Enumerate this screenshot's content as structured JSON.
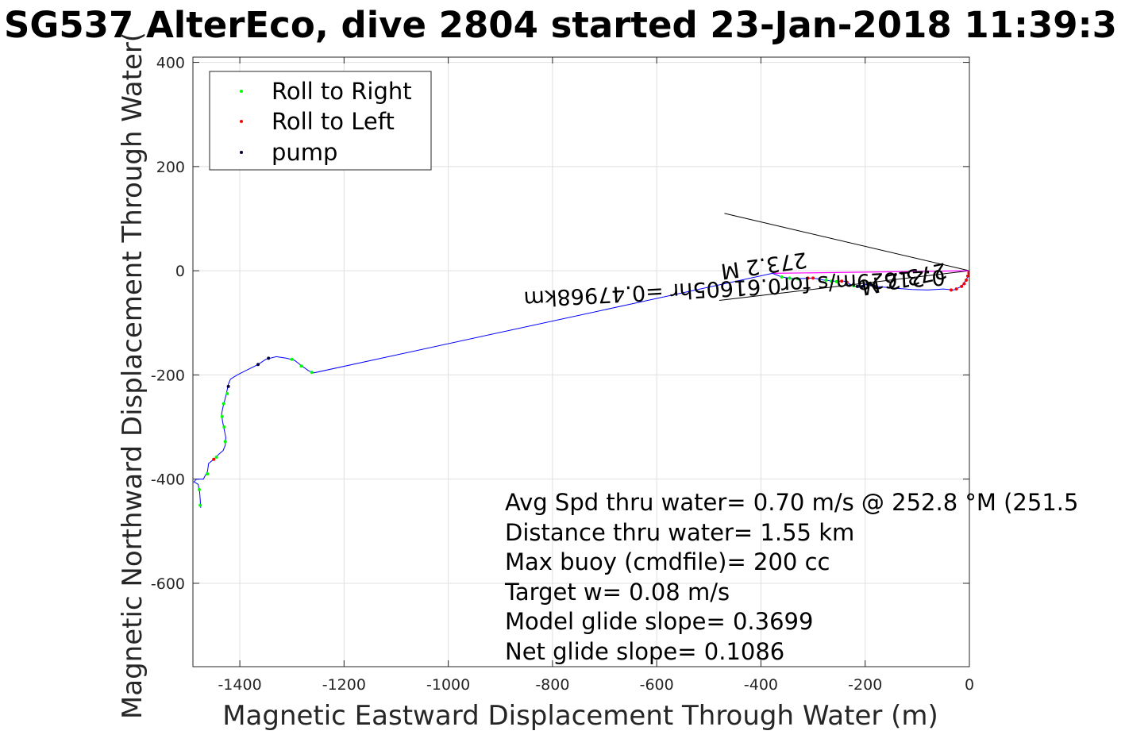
{
  "chart_data": {
    "type": "line",
    "title": "SG537 AlterEco, dive 2804 started 23-Jan-2018 11:39:3",
    "xlabel": "Magnetic Eastward Displacement Through Water (m)",
    "ylabel": "Magnetic Northward Displacement Through Water(",
    "xlim": [
      -1490,
      0
    ],
    "ylim": [
      -760,
      410
    ],
    "xticks": [
      -1400,
      -1200,
      -1000,
      -800,
      -600,
      -400,
      -200,
      0
    ],
    "yticks": [
      400,
      200,
      0,
      -200,
      -400,
      -600
    ],
    "grid": true,
    "legend": {
      "placement": "top-left",
      "entries": [
        {
          "label": "Roll to Right",
          "color": "#00ff00"
        },
        {
          "label": "Roll to Left",
          "color": "#ff0000"
        },
        {
          "label": "pump",
          "color": "#000033"
        }
      ]
    },
    "track_color": "#0000ff",
    "current_color": "#ff00ff",
    "track": [
      [
        -1475,
        -455
      ],
      [
        -1476,
        -440
      ],
      [
        -1477,
        -425
      ],
      [
        -1480,
        -410
      ],
      [
        -1488,
        -405
      ],
      [
        -1483,
        -400
      ],
      [
        -1470,
        -400
      ],
      [
        -1462,
        -385
      ],
      [
        -1460,
        -370
      ],
      [
        -1450,
        -362
      ],
      [
        -1445,
        -357
      ],
      [
        -1440,
        -352
      ],
      [
        -1432,
        -345
      ],
      [
        -1428,
        -335
      ],
      [
        -1427,
        -320
      ],
      [
        -1430,
        -305
      ],
      [
        -1433,
        -290
      ],
      [
        -1435,
        -275
      ],
      [
        -1432,
        -260
      ],
      [
        -1428,
        -245
      ],
      [
        -1425,
        -232
      ],
      [
        -1422,
        -218
      ],
      [
        -1418,
        -208
      ],
      [
        -1405,
        -200
      ],
      [
        -1385,
        -190
      ],
      [
        -1365,
        -180
      ],
      [
        -1350,
        -170
      ],
      [
        -1330,
        -165
      ],
      [
        -1310,
        -168
      ],
      [
        -1295,
        -172
      ],
      [
        -1282,
        -182
      ],
      [
        -1268,
        -192
      ],
      [
        -1258,
        -196
      ],
      [
        -378,
        -5
      ],
      [
        -360,
        -12
      ],
      [
        -340,
        -15
      ],
      [
        -320,
        -15
      ],
      [
        -300,
        -14
      ],
      [
        -280,
        -18
      ],
      [
        -260,
        -20
      ],
      [
        -240,
        -20
      ],
      [
        -225,
        -28
      ],
      [
        -212,
        -32
      ],
      [
        -205,
        -30
      ],
      [
        -198,
        -26
      ],
      [
        -190,
        -27
      ],
      [
        -180,
        -30
      ],
      [
        -150,
        -33
      ],
      [
        -110,
        -36
      ],
      [
        -80,
        -37
      ],
      [
        -50,
        -35
      ],
      [
        -30,
        -37
      ],
      [
        -15,
        -30
      ],
      [
        -8,
        -20
      ],
      [
        -2,
        -10
      ],
      [
        0,
        0
      ]
    ],
    "roll_right_points": [
      [
        -1476,
        -450
      ],
      [
        -1478,
        -420
      ],
      [
        -1462,
        -390
      ],
      [
        -1445,
        -358
      ],
      [
        -1428,
        -328
      ],
      [
        -1430,
        -300
      ],
      [
        -1434,
        -280
      ],
      [
        -1431,
        -255
      ],
      [
        -1424,
        -236
      ],
      [
        -1300,
        -170
      ],
      [
        -1282,
        -183
      ],
      [
        -1262,
        -195
      ],
      [
        -360,
        -12
      ],
      [
        -345,
        -14
      ],
      [
        -330,
        -15
      ],
      [
        -275,
        -18
      ],
      [
        -265,
        -20
      ],
      [
        -255,
        -21
      ],
      [
        -222,
        -29
      ]
    ],
    "roll_left_points": [
      [
        -1450,
        -362
      ],
      [
        -310,
        -14
      ],
      [
        -300,
        -14
      ],
      [
        -245,
        -20
      ],
      [
        -235,
        -22
      ],
      [
        -35,
        -37
      ],
      [
        -25,
        -35
      ],
      [
        -15,
        -30
      ],
      [
        -10,
        -25
      ],
      [
        -6,
        -18
      ],
      [
        -3,
        -10
      ],
      [
        -1,
        -4
      ]
    ],
    "pump_points": [
      [
        -1422,
        -222
      ],
      [
        -1365,
        -180
      ],
      [
        -1345,
        -168
      ],
      [
        -215,
        -30
      ],
      [
        -205,
        -30
      ],
      [
        -195,
        -26
      ],
      [
        -188,
        -27
      ],
      [
        -183,
        -29
      ]
    ],
    "current_vector": {
      "from": [
        0,
        0
      ],
      "to": [
        -378,
        -5
      ]
    },
    "cone_lines": [
      {
        "from": [
          0,
          0
        ],
        "to": [
          -470,
          110
        ]
      },
      {
        "from": [
          0,
          0
        ],
        "to": [
          -480,
          -57
        ]
      }
    ],
    "annotations": [
      "0.21629m/s for0.61605hr =0.47968km",
      "273.2 M",
      "273.2 M"
    ],
    "stats": [
      "Avg Spd thru water=  0.70 m/s @ 252.8 °M (251.5",
      "Distance thru water=  1.55 km",
      "Max buoy (cmdfile)= 200 cc",
      "Target w= 0.08 m/s",
      "Model glide slope= 0.3699",
      "Net glide slope= 0.1086"
    ]
  }
}
